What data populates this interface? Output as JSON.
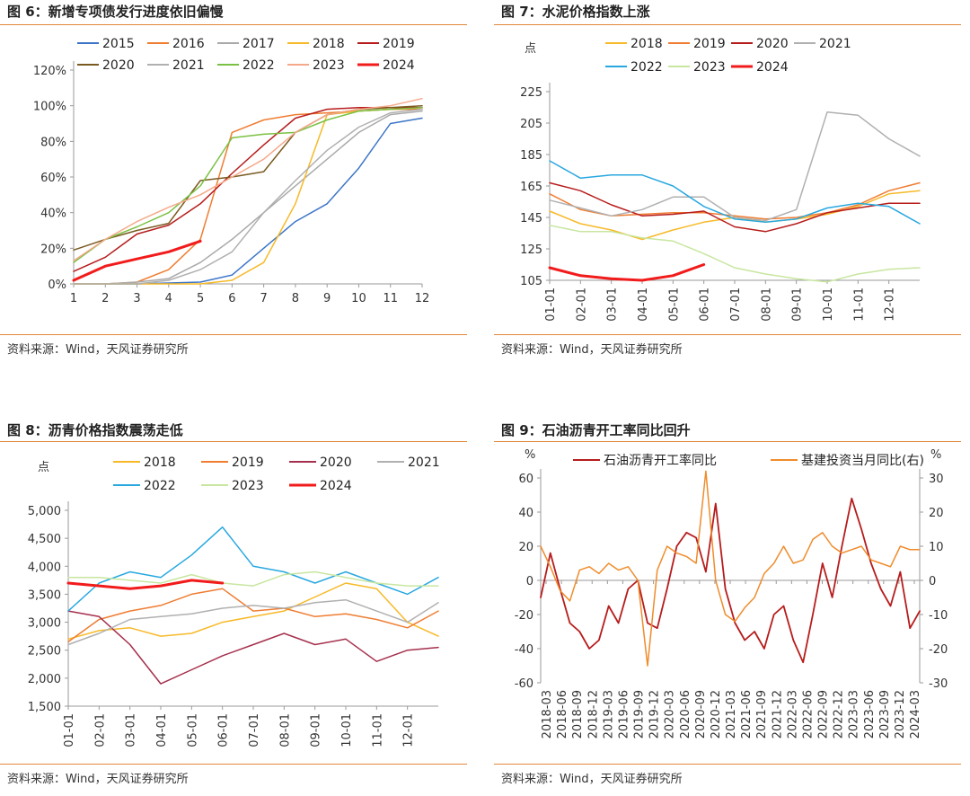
{
  "source_text": "资料来源：Wind，天风证券研究所",
  "colors": {
    "rule": "#e2873c",
    "grid": "#dddddd",
    "axis": "#999999"
  },
  "chart_data": [
    {
      "type": "line",
      "title": "图 6：新增专项债发行进度依旧偏慢",
      "ylabel": "",
      "x": [
        1,
        2,
        3,
        4,
        5,
        6,
        7,
        8,
        9,
        10,
        11,
        12
      ],
      "y_ticks": [
        "0%",
        "20%",
        "40%",
        "60%",
        "80%",
        "100%",
        "120%"
      ],
      "ylim": [
        0,
        120
      ],
      "grid": false,
      "legend": "top",
      "series": [
        {
          "name": "2015",
          "color": "#3c75c7",
          "width": 1.5,
          "values": [
            0,
            0,
            0,
            0.5,
            1,
            5,
            20,
            35,
            45,
            65,
            90,
            93
          ]
        },
        {
          "name": "2016",
          "color": "#ef7d32",
          "width": 1.5,
          "values": [
            0,
            0,
            1,
            8,
            25,
            85,
            92,
            95,
            96,
            97,
            98,
            98
          ]
        },
        {
          "name": "2017",
          "color": "#a9a9a9",
          "width": 1.5,
          "values": [
            0,
            0,
            1,
            3,
            12,
            25,
            40,
            55,
            70,
            85,
            95,
            97
          ]
        },
        {
          "name": "2018",
          "color": "#f7b928",
          "width": 1.5,
          "values": [
            0,
            0,
            0,
            0,
            0,
            2,
            12,
            45,
            95,
            97,
            98,
            99
          ]
        },
        {
          "name": "2019",
          "color": "#b71c1c",
          "width": 1.5,
          "values": [
            7,
            15,
            28,
            33,
            45,
            62,
            78,
            93,
            98,
            99,
            99,
            99
          ]
        },
        {
          "name": "2020",
          "color": "#7a5a20",
          "width": 1.5,
          "values": [
            19,
            25,
            30,
            34,
            58,
            60,
            63,
            85,
            95,
            98,
            99,
            100
          ]
        },
        {
          "name": "2021",
          "color": "#b0b0b0",
          "width": 1.5,
          "values": [
            0,
            0,
            0,
            2,
            8,
            18,
            40,
            58,
            75,
            88,
            96,
            98
          ]
        },
        {
          "name": "2022",
          "color": "#7ac143",
          "width": 1.5,
          "values": [
            12,
            25,
            32,
            40,
            55,
            82,
            84,
            85,
            92,
            97,
            98,
            99
          ]
        },
        {
          "name": "2023",
          "color": "#f5a98a",
          "width": 1.5,
          "values": [
            13,
            25,
            35,
            43,
            50,
            60,
            70,
            85,
            95,
            98,
            100,
            104
          ]
        },
        {
          "name": "2024",
          "color": "#f21b1b",
          "width": 3,
          "values": [
            2,
            10,
            14,
            18,
            24,
            null,
            null,
            null,
            null,
            null,
            null,
            null
          ]
        }
      ]
    },
    {
      "type": "line",
      "title": "图 7：水泥价格指数上涨",
      "ylabel": "点",
      "x_ticks": [
        "01-01",
        "02-01",
        "03-01",
        "04-01",
        "05-01",
        "06-01",
        "07-01",
        "08-01",
        "09-01",
        "10-01",
        "11-01",
        "12-01"
      ],
      "y_ticks": [
        "105",
        "125",
        "145",
        "165",
        "185",
        "205",
        "225"
      ],
      "ylim": [
        105,
        225
      ],
      "grid": false,
      "legend": "top",
      "series": [
        {
          "name": "2018",
          "color": "#f7b928",
          "width": 1.5,
          "values": [
            149,
            141,
            137,
            131,
            137,
            142,
            145,
            142,
            144,
            147,
            152,
            160,
            162
          ]
        },
        {
          "name": "2019",
          "color": "#ef7d32",
          "width": 1.5,
          "values": [
            160,
            150,
            146,
            147,
            148,
            148,
            146,
            144,
            145,
            148,
            153,
            162,
            167
          ]
        },
        {
          "name": "2020",
          "color": "#b71c1c",
          "width": 1.5,
          "values": [
            167,
            162,
            153,
            146,
            147,
            149,
            139,
            136,
            141,
            148,
            151,
            154,
            154
          ]
        },
        {
          "name": "2021",
          "color": "#b0b0b0",
          "width": 1.5,
          "values": [
            156,
            151,
            146,
            150,
            158,
            158,
            145,
            143,
            150,
            212,
            210,
            195,
            184
          ]
        },
        {
          "name": "2022",
          "color": "#29a8e0",
          "width": 1.5,
          "values": [
            181,
            170,
            172,
            172,
            165,
            152,
            144,
            142,
            144,
            151,
            154,
            152,
            141
          ]
        },
        {
          "name": "2023",
          "color": "#c8e6a0",
          "width": 1.5,
          "values": [
            140,
            136,
            136,
            132,
            130,
            122,
            113,
            109,
            106,
            104,
            109,
            112,
            113
          ]
        },
        {
          "name": "2024",
          "color": "#f21b1b",
          "width": 3,
          "values": [
            113,
            108,
            106,
            105,
            108,
            115,
            null,
            null,
            null,
            null,
            null,
            null,
            null
          ]
        }
      ]
    },
    {
      "type": "line",
      "title": "图 8：沥青价格指数震荡走低",
      "ylabel": "点",
      "x_ticks": [
        "01-01",
        "02-01",
        "03-01",
        "04-01",
        "05-01",
        "06-01",
        "07-01",
        "08-01",
        "09-01",
        "10-01",
        "11-01",
        "12-01"
      ],
      "y_ticks": [
        "1,500",
        "2,000",
        "2,500",
        "3,000",
        "3,500",
        "4,000",
        "4,500",
        "5,000"
      ],
      "ylim": [
        1500,
        5000
      ],
      "grid": false,
      "legend": "top",
      "series": [
        {
          "name": "2018",
          "color": "#f7b928",
          "width": 1.5,
          "values": [
            2700,
            2850,
            2900,
            2750,
            2800,
            3000,
            3100,
            3200,
            3450,
            3700,
            3600,
            3000,
            2750
          ]
        },
        {
          "name": "2019",
          "color": "#ef7d32",
          "width": 1.5,
          "values": [
            2650,
            3050,
            3200,
            3300,
            3500,
            3600,
            3200,
            3250,
            3100,
            3150,
            3050,
            2900,
            3200
          ]
        },
        {
          "name": "2020",
          "color": "#a5304d",
          "width": 1.5,
          "values": [
            3200,
            3100,
            2600,
            1900,
            2150,
            2400,
            2600,
            2800,
            2600,
            2700,
            2300,
            2500,
            2550
          ]
        },
        {
          "name": "2021",
          "color": "#b0b0b0",
          "width": 1.5,
          "values": [
            2600,
            2800,
            3050,
            3100,
            3150,
            3250,
            3300,
            3250,
            3350,
            3400,
            3200,
            3000,
            3350
          ]
        },
        {
          "name": "2022",
          "color": "#29a8e0",
          "width": 1.5,
          "values": [
            3200,
            3700,
            3900,
            3800,
            4200,
            4700,
            4000,
            3900,
            3700,
            3900,
            3700,
            3500,
            3800
          ]
        },
        {
          "name": "2023",
          "color": "#c8e6a0",
          "width": 1.5,
          "values": [
            3800,
            3800,
            3750,
            3700,
            3850,
            3700,
            3650,
            3850,
            3900,
            3800,
            3700,
            3650,
            3650
          ]
        },
        {
          "name": "2024",
          "color": "#f21b1b",
          "width": 3,
          "values": [
            3700,
            3650,
            3600,
            3650,
            3750,
            3700,
            null,
            null,
            null,
            null,
            null,
            null,
            null
          ]
        }
      ]
    },
    {
      "type": "line",
      "title": "图 9：石油沥青开工率同比回升",
      "ylabel": "%",
      "y2label": "%",
      "x_ticks": [
        "2018-03",
        "2018-06",
        "2018-09",
        "2018-12",
        "2019-03",
        "2019-06",
        "2019-09",
        "2019-12",
        "2020-03",
        "2020-06",
        "2020-09",
        "2020-12",
        "2021-03",
        "2021-06",
        "2021-09",
        "2021-12",
        "2022-03",
        "2022-06",
        "2022-09",
        "2022-12",
        "2023-03",
        "2023-06",
        "2023-09",
        "2023-12",
        "2024-03"
      ],
      "y_ticks": [
        "-60",
        "-40",
        "-20",
        "0",
        "20",
        "40",
        "60"
      ],
      "ylim": [
        -60,
        60
      ],
      "y2_ticks": [
        "-30",
        "-20",
        "-10",
        "0",
        "10",
        "20",
        "30"
      ],
      "y2lim": [
        -30,
        30
      ],
      "grid": false,
      "legend": "top",
      "series": [
        {
          "name": "石油沥青开工率同比",
          "color": "#b71c1c",
          "width": 1.8,
          "axis": "left",
          "values": [
            -10,
            16,
            -5,
            -25,
            -30,
            -40,
            -35,
            -15,
            -25,
            -5,
            0,
            -25,
            -28,
            -5,
            20,
            28,
            25,
            5,
            45,
            -5,
            -25,
            -35,
            -30,
            -40,
            -20,
            -15,
            -35,
            -48,
            -20,
            10,
            -10,
            20,
            48,
            30,
            10,
            -5,
            -15,
            5,
            -28,
            -18
          ]
        },
        {
          "name": "基建投资当月同比(右)",
          "color": "#ef8c2c",
          "width": 1.5,
          "axis": "right",
          "values": [
            10,
            4,
            -3,
            -6,
            3,
            4,
            2,
            5,
            3,
            4,
            0,
            -25,
            3,
            10,
            8,
            7,
            5,
            32,
            0,
            -10,
            -12,
            -8,
            -5,
            2,
            5,
            10,
            5,
            6,
            12,
            14,
            10,
            8,
            9,
            10,
            6,
            5,
            4,
            10,
            9,
            9
          ]
        }
      ]
    }
  ]
}
